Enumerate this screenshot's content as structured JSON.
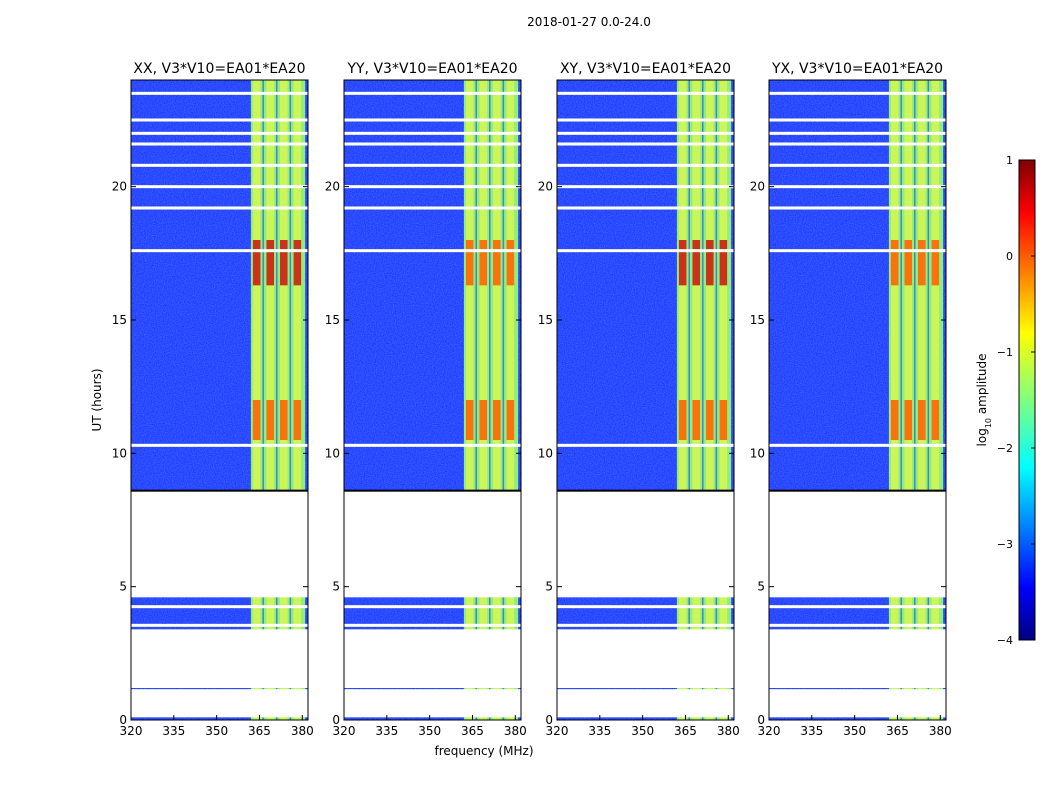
{
  "figure": {
    "suptitle": "2018-01-27 0.0-24.0",
    "xlabel": "frequency (MHz)",
    "ylabel": "UT (hours)"
  },
  "chart_data": {
    "type": "heatmap",
    "title": "2018-01-27 0.0-24.0",
    "xlabel": "frequency (MHz)",
    "ylabel": "UT (hours)",
    "xlim": [
      320,
      382
    ],
    "ylim": [
      0,
      24
    ],
    "xticks": [
      320,
      335,
      350,
      365,
      380
    ],
    "yticks": [
      0,
      5,
      10,
      15,
      20
    ],
    "panels": [
      {
        "title": "XX, V3*V10=EA01*EA20",
        "pol": "XX"
      },
      {
        "title": "YY, V3*V10=EA01*EA20",
        "pol": "YY"
      },
      {
        "title": "XY, V3*V10=EA01*EA20",
        "pol": "XY"
      },
      {
        "title": "YX, V3*V10=EA01*EA20",
        "pol": "YX"
      }
    ],
    "data_gaps_hours": [
      [
        1.2,
        3.4
      ],
      [
        4.6,
        8.6
      ]
    ],
    "missing_lines_hours": [
      1.1,
      3.55,
      4.25,
      10.3,
      17.6,
      19.2,
      20.0,
      20.8,
      21.6,
      22.0,
      22.5,
      23.5
    ],
    "rfi_band_mhz": [
      362,
      381
    ],
    "strong_rfi_hours": [
      [
        10.5,
        12.0
      ],
      [
        16.3,
        18.0
      ]
    ],
    "colorbar": {
      "label": "log10 amplitude",
      "label_main": "log",
      "label_sub": "10",
      "label_rest": " amplitude",
      "range": [
        -4,
        1
      ],
      "ticks": [
        "1",
        "0",
        "−1",
        "−2",
        "−3",
        "−4"
      ],
      "tick_values": [
        1,
        0,
        -1,
        -2,
        -3,
        -4
      ],
      "colormap": "jet"
    }
  }
}
